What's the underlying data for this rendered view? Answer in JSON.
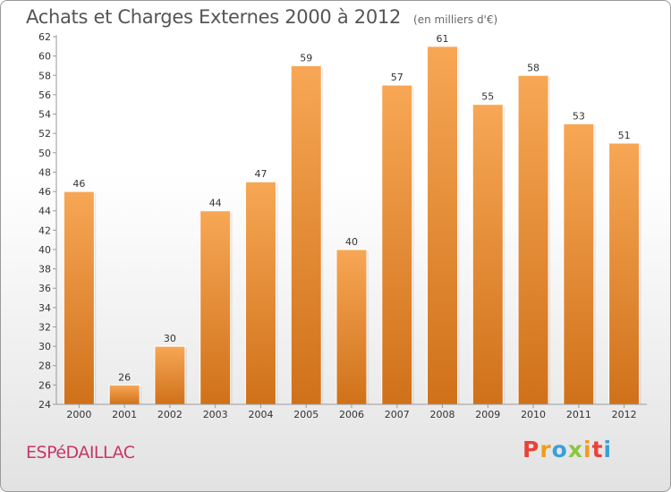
{
  "chart_data": {
    "type": "bar",
    "title": "Achats et Charges Externes 2000 à 2012",
    "subtitle": "(en milliers d'€)",
    "categories": [
      "2000",
      "2001",
      "2002",
      "2003",
      "2004",
      "2005",
      "2006",
      "2007",
      "2008",
      "2009",
      "2010",
      "2011",
      "2012"
    ],
    "values": [
      46,
      26,
      30,
      44,
      47,
      59,
      40,
      57,
      61,
      55,
      58,
      53,
      51
    ],
    "xlabel": "",
    "ylabel": "",
    "ylim": [
      24,
      62
    ],
    "yticks": [
      24,
      26,
      28,
      30,
      32,
      34,
      36,
      38,
      40,
      42,
      44,
      46,
      48,
      50,
      52,
      54,
      56,
      58,
      60,
      62
    ],
    "grid": false,
    "bar_color_top": "#f7a755",
    "bar_color_bottom": "#d0711a"
  },
  "footer": {
    "commune": "ESPéDAILLAC",
    "brand": "Proxiti",
    "brand_colors": [
      "#e8433a",
      "#f39c1a",
      "#3c9fd8",
      "#8cc63f",
      "#f39c1a",
      "#e8433a",
      "#3c9fd8"
    ]
  }
}
